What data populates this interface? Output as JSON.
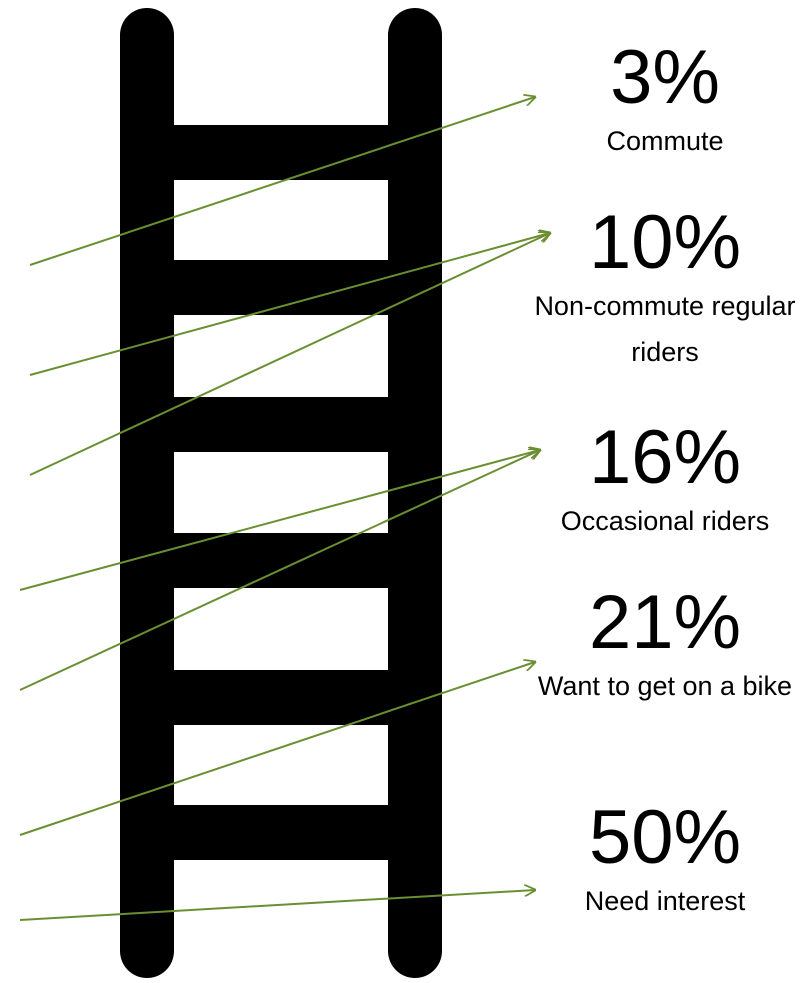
{
  "items": [
    {
      "value": "3%",
      "label": "Commute"
    },
    {
      "value": "10%",
      "label": "Non-commute regular riders"
    },
    {
      "value": "16%",
      "label": "Occasional riders"
    },
    {
      "value": "21%",
      "label": "Want to get on a bike"
    },
    {
      "value": "50%",
      "label": "Need interest"
    }
  ]
}
